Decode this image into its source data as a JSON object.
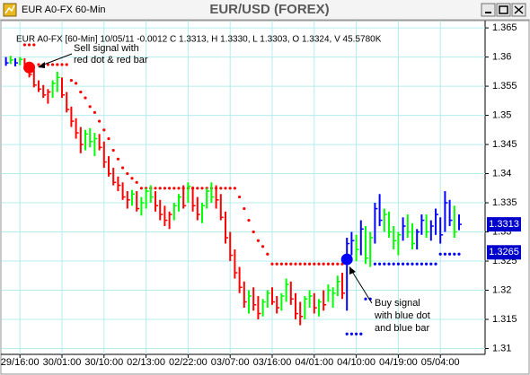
{
  "window_title": "EUR A0-FX 60-Min",
  "chart_data": {
    "type": "ohlc",
    "title": "EUR/USD (FOREX)",
    "subtitle": "EUR A0-FX [60-Min] 10/05/11  -0.0012 C 1.3313, H 1.3330, L 1.3303, O 1.3324, V 45.5780K",
    "categories": [
      null,
      null,
      null,
      "29/16:00",
      null,
      null,
      null,
      null,
      null,
      null,
      null,
      null,
      "30/01:00",
      null,
      null,
      null,
      null,
      null,
      null,
      null,
      null,
      "30/10:00",
      null,
      null,
      null,
      null,
      null,
      null,
      null,
      null,
      "02/13:00",
      null,
      null,
      null,
      null,
      null,
      null,
      null,
      null,
      "02/22:00",
      null,
      null,
      null,
      null,
      null,
      null,
      null,
      null,
      "03/07:00",
      null,
      null,
      null,
      null,
      null,
      null,
      null,
      null,
      "03/16:00",
      null,
      null,
      null,
      null,
      null,
      null,
      null,
      null,
      "04/01:00",
      null,
      null,
      null,
      null,
      null,
      null,
      null,
      null,
      "04/10:00",
      null,
      null,
      null,
      null,
      null,
      null,
      null,
      null,
      "04/19:00",
      null,
      null,
      null,
      null,
      null,
      null,
      null,
      null,
      "05/04:00",
      null,
      null,
      null,
      null
    ],
    "high": [
      1.36,
      1.3602,
      1.3598,
      1.36,
      1.3598,
      1.359,
      1.3578,
      1.356,
      1.3552,
      1.3545,
      1.356,
      1.3575,
      1.3565,
      1.354,
      1.3515,
      1.3495,
      1.348,
      1.3475,
      1.3478,
      1.347,
      1.3468,
      1.3455,
      1.343,
      1.341,
      1.3395,
      1.3385,
      1.337,
      1.3372,
      1.337,
      1.336,
      1.3375,
      1.338,
      1.337,
      1.3355,
      1.3345,
      1.3335,
      1.335,
      1.3365,
      1.338,
      1.3385,
      1.3378,
      1.336,
      1.335,
      1.3375,
      1.3385,
      1.338,
      1.3365,
      1.3335,
      1.33,
      1.327,
      1.324,
      1.3215,
      1.32,
      1.3205,
      1.319,
      1.3185,
      1.32,
      1.3205,
      1.319,
      1.3195,
      1.322,
      1.3215,
      1.3195,
      1.318,
      1.319,
      1.32,
      1.3195,
      1.3185,
      1.32,
      1.321,
      1.3205,
      1.3225,
      1.323,
      1.329,
      1.33,
      1.3295,
      1.332,
      1.331,
      1.33,
      1.335,
      1.3365,
      1.334,
      1.3335,
      1.331,
      1.33,
      1.3325,
      1.333,
      1.3315,
      1.3305,
      1.333,
      1.333,
      1.332,
      1.334,
      1.3325,
      1.337,
      1.3355,
      1.3345,
      1.333
    ],
    "low": [
      1.3585,
      1.3588,
      1.3584,
      1.3586,
      1.3578,
      1.3565,
      1.3548,
      1.354,
      1.353,
      1.352,
      1.353,
      1.354,
      1.353,
      1.3505,
      1.348,
      1.346,
      1.3435,
      1.344,
      1.3445,
      1.343,
      1.344,
      1.341,
      1.3395,
      1.338,
      1.337,
      1.3355,
      1.334,
      1.3345,
      1.3335,
      1.3328,
      1.334,
      1.335,
      1.3335,
      1.332,
      1.331,
      1.3305,
      1.332,
      1.3335,
      1.334,
      1.335,
      1.3335,
      1.332,
      1.3315,
      1.334,
      1.335,
      1.334,
      1.332,
      1.328,
      1.325,
      1.322,
      1.3195,
      1.317,
      1.316,
      1.3165,
      1.315,
      1.3155,
      1.317,
      1.3175,
      1.316,
      1.3165,
      1.318,
      1.3175,
      1.315,
      1.314,
      1.315,
      1.317,
      1.316,
      1.3155,
      1.3165,
      1.318,
      1.317,
      1.319,
      1.3185,
      1.3165,
      1.326,
      1.325,
      1.326,
      1.3245,
      1.324,
      1.328,
      1.331,
      1.33,
      1.329,
      1.327,
      1.326,
      1.3285,
      1.329,
      1.327,
      1.327,
      1.3295,
      1.329,
      1.3285,
      1.3295,
      1.328,
      1.33,
      1.331,
      1.329,
      1.3303
    ],
    "close": [
      1.359,
      1.3595,
      1.359,
      1.3596,
      1.3582,
      1.357,
      1.3552,
      1.3545,
      1.3535,
      1.354,
      1.3555,
      1.3565,
      1.3535,
      1.351,
      1.349,
      1.347,
      1.345,
      1.3468,
      1.3455,
      1.346,
      1.3445,
      1.342,
      1.34,
      1.3385,
      1.338,
      1.336,
      1.3355,
      1.3365,
      1.334,
      1.335,
      1.337,
      1.336,
      1.3345,
      1.333,
      1.332,
      1.333,
      1.3345,
      1.336,
      1.3345,
      1.3378,
      1.3345,
      1.333,
      1.3345,
      1.337,
      1.336,
      1.3355,
      1.3325,
      1.329,
      1.326,
      1.323,
      1.3205,
      1.318,
      1.319,
      1.3175,
      1.316,
      1.318,
      1.3195,
      1.318,
      1.317,
      1.319,
      1.321,
      1.3185,
      1.316,
      1.3155,
      1.3185,
      1.319,
      1.317,
      1.318,
      1.3175,
      1.32,
      1.3195,
      1.3215,
      1.3195,
      1.328,
      1.3285,
      1.327,
      1.3305,
      1.3255,
      1.329,
      1.334,
      1.332,
      1.333,
      1.33,
      1.3285,
      1.3295,
      1.331,
      1.33,
      1.328,
      1.33,
      1.332,
      1.33,
      1.331,
      1.333,
      1.3295,
      1.335,
      1.332,
      1.33,
      1.3313
    ],
    "bar_colors": [
      "blue",
      "lime",
      "blue",
      "lime",
      "red",
      "red",
      "red",
      "red",
      "red",
      "red",
      "lime",
      "lime",
      "red",
      "red",
      "red",
      "red",
      "red",
      "lime",
      "lime",
      "lime",
      "red",
      "red",
      "red",
      "red",
      "red",
      "red",
      "red",
      "lime",
      "red",
      "lime",
      "lime",
      "lime",
      "red",
      "red",
      "red",
      "red",
      "lime",
      "lime",
      "red",
      "lime",
      "red",
      "red",
      "lime",
      "lime",
      "lime",
      "red",
      "red",
      "red",
      "red",
      "red",
      "red",
      "red",
      "lime",
      "red",
      "red",
      "lime",
      "lime",
      "red",
      "red",
      "lime",
      "lime",
      "red",
      "red",
      "red",
      "lime",
      "lime",
      "red",
      "lime",
      "red",
      "lime",
      "lime",
      "lime",
      "red",
      "blue",
      "blue",
      "lime",
      "blue",
      "lime",
      "lime",
      "blue",
      "blue",
      "lime",
      "lime",
      "lime",
      "lime",
      "blue",
      "lime",
      "lime",
      "blue",
      "blue",
      "lime",
      "blue",
      "blue",
      "blue",
      "blue",
      "blue",
      "lime",
      "blue"
    ],
    "sell_stop": {
      "color": "#ff0000",
      "values": [
        null,
        null,
        null,
        null,
        1.3621,
        1.3621,
        1.3621,
        1.3587,
        1.3587,
        1.3587,
        1.3587,
        1.3587,
        1.3587,
        1.3587,
        1.356,
        1.3555,
        1.354,
        1.353,
        1.3515,
        1.3505,
        1.349,
        1.3475,
        1.346,
        1.344,
        1.3425,
        1.341,
        1.34,
        1.3392,
        1.3385,
        1.3375,
        1.3375,
        1.3375,
        1.3375,
        1.3375,
        1.3375,
        1.3375,
        1.3375,
        1.3375,
        1.3375,
        1.3375,
        1.3375,
        1.3375,
        1.3375,
        1.3375,
        1.3375,
        1.3375,
        1.3375,
        1.3375,
        1.3375,
        1.3375,
        1.336,
        1.334,
        1.332,
        1.33,
        1.3285,
        1.3275,
        1.3262,
        1.3245,
        1.3245,
        1.3245,
        1.3245,
        1.3245,
        1.3245,
        1.3245,
        1.3245,
        1.3245,
        1.3245,
        1.3245,
        1.3245,
        1.3245,
        1.3245,
        1.3245,
        1.3245,
        null,
        null,
        null,
        null,
        null,
        null,
        null,
        null,
        null,
        null,
        null,
        null,
        null,
        null,
        null,
        null,
        null,
        null,
        null,
        null,
        null,
        null,
        null,
        null,
        null
      ]
    },
    "buy_stop": {
      "color": "#0000ff",
      "values": [
        null,
        null,
        null,
        null,
        null,
        null,
        null,
        null,
        null,
        null,
        null,
        null,
        null,
        null,
        null,
        null,
        null,
        null,
        null,
        null,
        null,
        null,
        null,
        null,
        null,
        null,
        null,
        null,
        null,
        null,
        null,
        null,
        null,
        null,
        null,
        null,
        null,
        null,
        null,
        null,
        null,
        null,
        null,
        null,
        null,
        null,
        null,
        null,
        null,
        null,
        null,
        null,
        null,
        null,
        null,
        null,
        null,
        null,
        null,
        null,
        null,
        null,
        null,
        null,
        null,
        null,
        null,
        null,
        null,
        null,
        null,
        null,
        null,
        1.3125,
        1.3125,
        1.3125,
        1.3125,
        1.3185,
        1.3185,
        1.3245,
        1.3245,
        1.3245,
        1.3245,
        1.3245,
        1.3245,
        1.3245,
        1.3245,
        1.3245,
        1.3245,
        1.3245,
        1.3245,
        1.3245,
        1.3245,
        1.3262,
        1.3262,
        1.3262,
        1.3262,
        1.3262
      ]
    },
    "signals": [
      {
        "index": 5,
        "value": 1.3582,
        "color": "#ff0000"
      },
      {
        "index": 73,
        "value": 1.3253,
        "color": "#0000ff"
      }
    ],
    "annotations": [
      {
        "lines": [
          "Sell signal with",
          "red dot & red bar"
        ]
      },
      {
        "lines": [
          "Buy signal",
          "with blue dot",
          "and blue bar"
        ]
      }
    ],
    "price_tags": [
      1.3313,
      1.3265
    ],
    "price_tag_color": "#0000cc",
    "ylim": [
      1.309,
      1.3664
    ],
    "yticks": [
      1.31,
      1.315,
      1.32,
      1.325,
      1.33,
      1.335,
      1.34,
      1.345,
      1.35,
      1.355,
      1.36,
      1.365
    ],
    "grid": true,
    "grid_color": "#b4ecec"
  }
}
